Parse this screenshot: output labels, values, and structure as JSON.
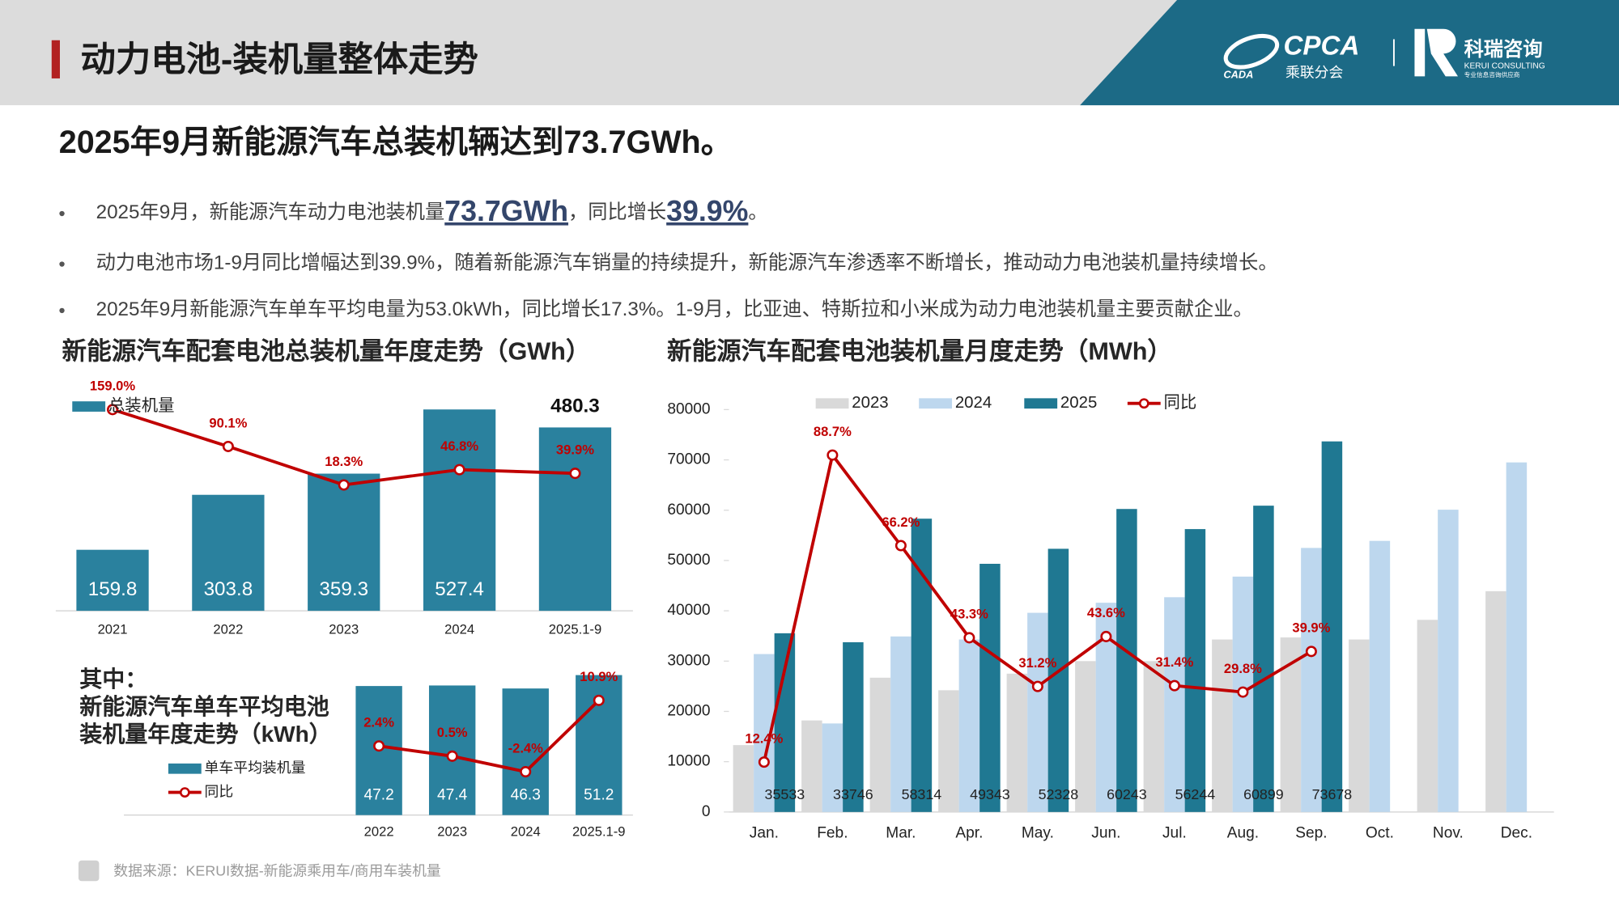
{
  "header": {
    "title": "动力电池-装机量整体走势",
    "logo_cpca": "CPCA",
    "logo_cpca_cn": "乘联分会",
    "logo_cada": "CADA",
    "logo_kerui": "科瑞咨询",
    "logo_kerui_en": "KERUI CONSULTING",
    "logo_kerui_tagline": "专业信息咨询供应商"
  },
  "headline": "2025年9月新能源汽车总装机辆达到73.7GWh。",
  "bullets": [
    [
      "2025年9月，新能源汽车动力电池装机量",
      "73.7GWh",
      "，同比增长",
      "39.9%",
      "。"
    ],
    [
      "动力电池市场1-9月同比增幅达到39.9%，随着新能源汽车销量的持续提升，新能源汽车渗透率不断增长，推动动力电池装机量持续增长。"
    ],
    [
      "2025年9月新能源汽车单车平均电量为53.0kWh，同比增长17.3%。1-9月，比亚迪、特斯拉和小米成为动力电池装机量主要贡献企业。"
    ]
  ],
  "source": "数据来源：KERUI数据-新能源乘用车/商用车装机量",
  "chart_data": [
    {
      "type": "bar",
      "title": "新能源汽车配套电池总装机量年度走势（GWh）",
      "categories": [
        "2021",
        "2022",
        "2023",
        "2024",
        "2025.1-9"
      ],
      "series": [
        {
          "name": "总装机量",
          "color": "#2a819e",
          "values": [
            159.8,
            303.8,
            359.3,
            527.4,
            480.3
          ],
          "data_labels": true
        },
        {
          "type": "line",
          "color": "#c00000",
          "values": [
            159.0,
            90.1,
            18.3,
            46.8,
            39.9
          ],
          "value_labels": [
            "159.0%",
            "90.1%",
            "18.3%",
            "46.8%",
            "39.9%"
          ]
        }
      ]
    },
    {
      "type": "bar",
      "title_lines": [
        "其中：",
        "新能源汽车单车平均电池",
        "装机量年度走势（kWh）"
      ],
      "categories": [
        "2022",
        "2023",
        "2024",
        "2025.1-9"
      ],
      "series": [
        {
          "name": "单车平均装机量",
          "color": "#2a819e",
          "values": [
            47.2,
            47.4,
            46.3,
            51.2
          ],
          "data_labels": true
        },
        {
          "name": "同比",
          "type": "line",
          "color": "#c00000",
          "values": [
            2.4,
            0.5,
            -2.4,
            10.9
          ],
          "value_labels": [
            "2.4%",
            "0.5%",
            "-2.4%",
            "10.9%"
          ]
        }
      ]
    },
    {
      "type": "bar",
      "title": "新能源汽车配套电池装机量月度走势（MWh）",
      "categories": [
        "Jan.",
        "Feb.",
        "Mar.",
        "Apr.",
        "May.",
        "Jun.",
        "Jul.",
        "Aug.",
        "Sep.",
        "Oct.",
        "Nov.",
        "Dec."
      ],
      "ylim": [
        0,
        80000
      ],
      "yticks": [
        0,
        10000,
        20000,
        30000,
        40000,
        50000,
        60000,
        70000,
        80000
      ],
      "series": [
        {
          "name": "2023",
          "color": "#d9d9d9",
          "values": [
            13300,
            18200,
            26700,
            24200,
            27500,
            30000,
            30000,
            34300,
            34700,
            34300,
            38200,
            43900
          ]
        },
        {
          "name": "2024",
          "color": "#bdd7ee",
          "values": [
            31400,
            17600,
            34900,
            34300,
            39600,
            41600,
            42700,
            46800,
            52500,
            53900,
            60100,
            69500
          ]
        },
        {
          "name": "2025",
          "color": "#1f7892",
          "values": [
            35533,
            33746,
            58314,
            49343,
            52328,
            60243,
            56244,
            60899,
            73678,
            null,
            null,
            null
          ],
          "data_labels": true
        },
        {
          "name": "同比",
          "type": "line",
          "color": "#c00000",
          "values": [
            12.4,
            88.7,
            66.2,
            43.3,
            31.2,
            43.6,
            31.4,
            29.8,
            39.9,
            null,
            null,
            null
          ],
          "value_labels": [
            "12.4%",
            "88.7%",
            "66.2%",
            "43.3%",
            "31.2%",
            "43.6%",
            "31.4%",
            "29.8%",
            "39.9%",
            null,
            null,
            null
          ]
        }
      ]
    }
  ]
}
